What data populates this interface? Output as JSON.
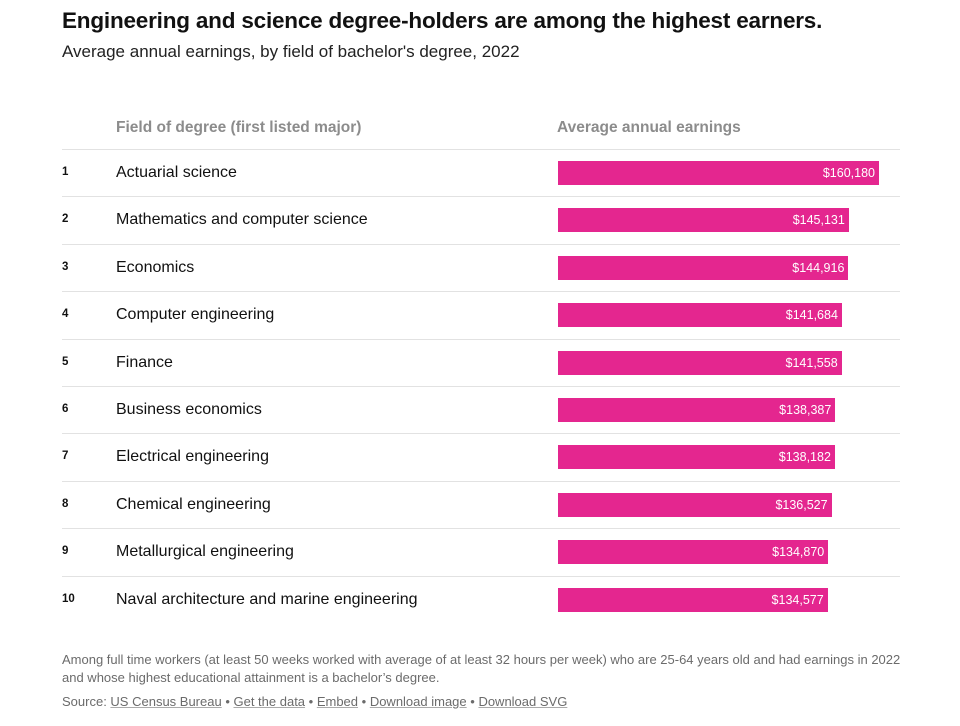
{
  "header": {
    "title": "Engineering and science degree-holders are among the highest earners.",
    "subtitle": "Average annual earnings, by field of bachelor's degree, 2022"
  },
  "columns": {
    "field": "Field of degree (first listed major)",
    "earnings": "Average annual earnings"
  },
  "chart_data": {
    "type": "bar",
    "orientation": "horizontal",
    "title": "Engineering and science degree-holders are among the highest earners.",
    "subtitle": "Average annual earnings, by field of bachelor's degree, 2022",
    "xlabel": "Average annual earnings",
    "ylabel": "Field of degree (first listed major)",
    "xlim": [
      0,
      160180
    ],
    "bar_color": "#e4268f",
    "ranks": [
      "1",
      "2",
      "3",
      "4",
      "5",
      "6",
      "7",
      "8",
      "9",
      "10"
    ],
    "categories": [
      "Actuarial science",
      "Mathematics and computer science",
      "Economics",
      "Computer engineering",
      "Finance",
      "Business economics",
      "Electrical engineering",
      "Chemical engineering",
      "Metallurgical engineering",
      "Naval architecture and marine engineering"
    ],
    "values": [
      160180,
      145131,
      144916,
      141684,
      141558,
      138387,
      138182,
      136527,
      134870,
      134577
    ],
    "labels": [
      "$160,180",
      "$145,131",
      "$144,916",
      "$141,684",
      "$141,558",
      "$138,387",
      "$138,182",
      "$136,527",
      "$134,870",
      "$134,577"
    ]
  },
  "footer": {
    "note": "Among full time workers (at least 50 weeks worked with average of at least 32 hours per week) who are 25-64 years old and had earnings in 2022 and whose highest educational attainment is a bachelor’s degree.",
    "source_prefix": "Source: ",
    "separator": " • ",
    "links": [
      "US Census Bureau",
      "Get the data",
      "Embed",
      "Download image",
      "Download SVG"
    ]
  },
  "colors": {
    "bar": "#e4268f",
    "header_text": "#8c8c8c",
    "footer_text": "#6b6b6b"
  }
}
